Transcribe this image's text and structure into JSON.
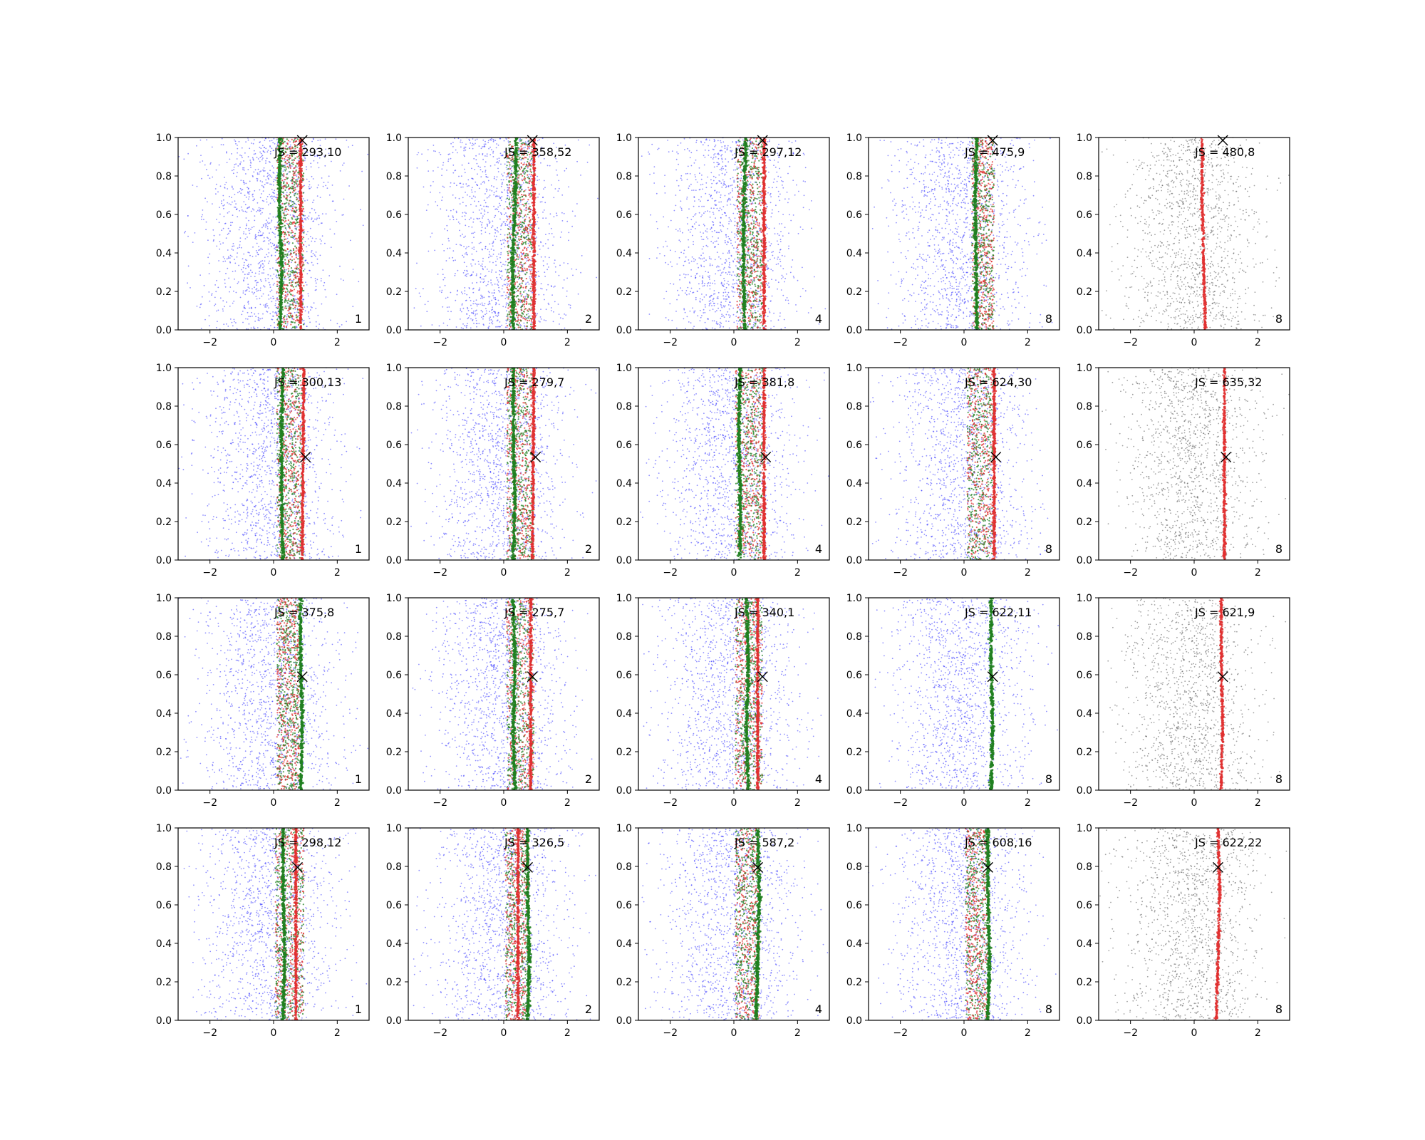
{
  "chart_data": {
    "type": "scatter",
    "layout": {
      "rows": 4,
      "cols": 5
    },
    "shared_axes": {
      "xlim": [
        -3,
        3
      ],
      "ylim": [
        0,
        1
      ],
      "xticks": [
        -2,
        0,
        2
      ],
      "xtick_labels": [
        "−2",
        "0",
        "2"
      ],
      "yticks": [
        0,
        0.2,
        0.4,
        0.6,
        0.8,
        1.0
      ],
      "ytick_labels": [
        "0.0",
        "0.2",
        "0.4",
        "0.6",
        "0.8",
        "1.0"
      ]
    },
    "series_colors": {
      "background": "#3333ff",
      "method_a": "#e03030",
      "method_b": "#208020",
      "reference": "#555555",
      "marker": "#000000"
    },
    "row_marker_y": [
      0.985,
      0.535,
      0.59,
      0.795
    ],
    "panels": [
      {
        "row": 0,
        "col": 0,
        "label": "JS = 293,10",
        "corner": "1",
        "marker": {
          "x": 0.9,
          "y": 0.985
        },
        "background": "blue",
        "band": [
          0.1,
          0.95
        ],
        "green_line": [
          0.2,
          0.25,
          0.18,
          0.2
        ],
        "red_line": [
          0.85,
          0.85
        ]
      },
      {
        "row": 0,
        "col": 1,
        "label": "JS = 358,52",
        "corner": "2",
        "marker": {
          "x": 0.9,
          "y": 0.985
        },
        "background": "blue",
        "band": [
          0.1,
          0.95
        ],
        "green_line": [
          0.3,
          0.28,
          0.35,
          0.4
        ],
        "red_line": [
          0.95,
          0.95
        ]
      },
      {
        "row": 0,
        "col": 2,
        "label": "JS = 297,12",
        "corner": "4",
        "marker": {
          "x": 0.9,
          "y": 0.985
        },
        "background": "blue",
        "band": [
          0.1,
          0.95
        ],
        "green_line": [
          0.35,
          0.3,
          0.32,
          0.38
        ],
        "red_line": [
          0.95,
          0.95
        ]
      },
      {
        "row": 0,
        "col": 3,
        "label": "JS = 475,9",
        "corner": "8",
        "marker": {
          "x": 0.9,
          "y": 0.985
        },
        "background": "blue",
        "band": [
          0.25,
          0.95
        ],
        "green_line": [
          0.4,
          0.38,
          0.35,
          0.4
        ],
        "red_line": null
      },
      {
        "row": 0,
        "col": 4,
        "label": "JS = 480,8",
        "corner": "8",
        "marker": {
          "x": 0.9,
          "y": 0.985
        },
        "background": "gray",
        "band": null,
        "green_line": null,
        "red_line": [
          0.35,
          0.3,
          0.25,
          0.25
        ]
      },
      {
        "row": 1,
        "col": 0,
        "label": "JS = 300,13",
        "corner": "1",
        "marker": {
          "x": 1.0,
          "y": 0.535
        },
        "background": "blue",
        "band": [
          0.1,
          0.95
        ],
        "green_line": [
          0.3,
          0.25,
          0.25,
          0.3
        ],
        "red_line": [
          0.9,
          0.95
        ]
      },
      {
        "row": 1,
        "col": 1,
        "label": "JS = 279,7",
        "corner": "2",
        "marker": {
          "x": 1.0,
          "y": 0.535
        },
        "background": "blue",
        "band": [
          0.1,
          0.95
        ],
        "green_line": [
          0.3,
          0.35,
          0.3,
          0.3
        ],
        "red_line": [
          0.9,
          0.95
        ]
      },
      {
        "row": 1,
        "col": 2,
        "label": "JS = 381,8",
        "corner": "4",
        "marker": {
          "x": 1.0,
          "y": 0.535
        },
        "background": "blue",
        "band": [
          0.05,
          0.95
        ],
        "green_line": [
          0.2,
          0.2,
          0.15,
          0.2
        ],
        "red_line": [
          0.95,
          0.95
        ]
      },
      {
        "row": 1,
        "col": 3,
        "label": "JS = 624,30",
        "corner": "8",
        "marker": {
          "x": 1.0,
          "y": 0.535
        },
        "background": "blue",
        "band": [
          0.1,
          0.95
        ],
        "green_line": null,
        "red_line": [
          0.95,
          0.95
        ]
      },
      {
        "row": 1,
        "col": 4,
        "label": "JS = 635,32",
        "corner": "8",
        "marker": {
          "x": 1.0,
          "y": 0.535
        },
        "background": "gray",
        "band": null,
        "green_line": null,
        "red_line": [
          0.95,
          0.95
        ]
      },
      {
        "row": 2,
        "col": 0,
        "label": "JS = 375,8",
        "corner": "1",
        "marker": {
          "x": 0.9,
          "y": 0.59
        },
        "background": "blue",
        "band": [
          0.1,
          0.8
        ],
        "green_line": [
          0.85,
          0.9,
          0.85,
          0.85
        ],
        "red_line": null
      },
      {
        "row": 2,
        "col": 1,
        "label": "JS = 275,7",
        "corner": "2",
        "marker": {
          "x": 0.9,
          "y": 0.59
        },
        "background": "blue",
        "band": [
          0.1,
          0.95
        ],
        "green_line": [
          0.35,
          0.3,
          0.35,
          0.3
        ],
        "red_line": [
          0.85,
          0.85
        ]
      },
      {
        "row": 2,
        "col": 2,
        "label": "JS = 340,1",
        "corner": "4",
        "marker": {
          "x": 0.9,
          "y": 0.59
        },
        "background": "blue",
        "band": [
          0.05,
          0.9
        ],
        "green_line": [
          0.45,
          0.4,
          0.45,
          0.4
        ],
        "red_line": [
          0.75,
          0.75
        ]
      },
      {
        "row": 2,
        "col": 3,
        "label": "JS = 622,11",
        "corner": "8",
        "marker": {
          "x": 0.9,
          "y": 0.59
        },
        "background": "blue",
        "band": null,
        "green_line": [
          0.85,
          0.9,
          0.85,
          0.85
        ],
        "red_line": null
      },
      {
        "row": 2,
        "col": 4,
        "label": "JS = 621,9",
        "corner": "8",
        "marker": {
          "x": 0.9,
          "y": 0.59
        },
        "background": "gray",
        "band": null,
        "green_line": null,
        "red_line": [
          0.85,
          0.9,
          0.85,
          0.85
        ]
      },
      {
        "row": 3,
        "col": 0,
        "label": "JS = 298,12",
        "corner": "1",
        "marker": {
          "x": 0.75,
          "y": 0.795
        },
        "background": "blue",
        "band": [
          0.05,
          0.95
        ],
        "green_line": [
          0.3,
          0.35,
          0.3,
          0.3
        ],
        "red_line": [
          0.7,
          0.7
        ]
      },
      {
        "row": 3,
        "col": 1,
        "label": "JS = 326,5",
        "corner": "2",
        "marker": {
          "x": 0.75,
          "y": 0.795
        },
        "background": "blue",
        "band": [
          0.05,
          0.8
        ],
        "green_line": [
          0.75,
          0.8,
          0.75,
          0.75
        ],
        "red_line": [
          0.45,
          0.45
        ]
      },
      {
        "row": 3,
        "col": 2,
        "label": "JS = 587,2",
        "corner": "4",
        "marker": {
          "x": 0.75,
          "y": 0.795
        },
        "background": "blue",
        "band": [
          0.05,
          0.8
        ],
        "green_line": [
          0.7,
          0.75,
          0.8,
          0.75
        ],
        "red_line": null
      },
      {
        "row": 3,
        "col": 3,
        "label": "JS = 608,16",
        "corner": "8",
        "marker": {
          "x": 0.75,
          "y": 0.795
        },
        "background": "blue",
        "band": [
          0.05,
          0.8
        ],
        "green_line": [
          0.75,
          0.8,
          0.75,
          0.75
        ],
        "red_line": null
      },
      {
        "row": 3,
        "col": 4,
        "label": "JS = 622,22",
        "corner": "8",
        "marker": {
          "x": 0.75,
          "y": 0.795
        },
        "background": "gray",
        "band": null,
        "green_line": null,
        "red_line": [
          0.7,
          0.75,
          0.8,
          0.75
        ]
      }
    ]
  }
}
